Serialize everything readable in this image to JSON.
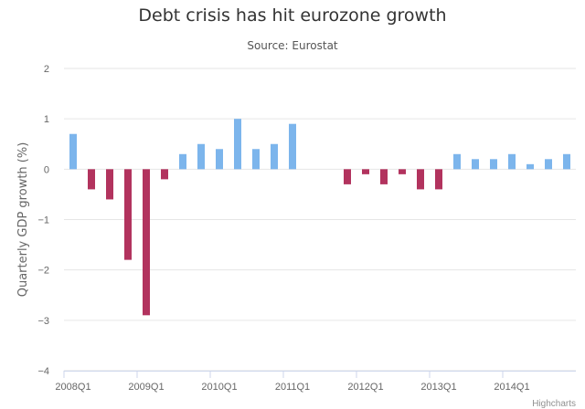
{
  "chart_data": {
    "type": "bar",
    "title": "Debt crisis has hit eurozone growth",
    "subtitle": "Source: Eurostat",
    "xlabel": "",
    "ylabel": "Quarterly GDP growth (%)",
    "ylim": [
      -4,
      2
    ],
    "yticks": [
      2,
      1,
      0,
      -1,
      -2,
      -3,
      -4
    ],
    "ytick_labels": [
      "2",
      "1",
      "0",
      "−1",
      "−2",
      "−3",
      "−4"
    ],
    "grid": true,
    "legend": "none",
    "colors": {
      "positive": "#7cb5ec",
      "negative": "#b2335e",
      "grid": "#e6e6e6",
      "axis": "#ccd6eb"
    },
    "categories": [
      "2008Q1",
      "2008Q2",
      "2008Q3",
      "2008Q4",
      "2009Q1",
      "2009Q2",
      "2009Q3",
      "2009Q4",
      "2010Q1",
      "2010Q2",
      "2010Q3",
      "2010Q4",
      "2011Q1",
      "2011Q2",
      "2011Q3",
      "2011Q4",
      "2012Q1",
      "2012Q2",
      "2012Q3",
      "2012Q4",
      "2013Q1",
      "2013Q2",
      "2013Q3",
      "2013Q4",
      "2014Q1",
      "2014Q2",
      "2014Q3",
      "2014Q4"
    ],
    "values": [
      0.7,
      -0.4,
      -0.6,
      -1.8,
      -2.9,
      -0.2,
      0.3,
      0.5,
      0.4,
      1.0,
      0.4,
      0.5,
      0.9,
      0.0,
      0.0,
      -0.3,
      -0.1,
      -0.3,
      -0.1,
      -0.4,
      -0.4,
      0.3,
      0.2,
      0.2,
      0.3,
      0.1,
      0.2,
      0.3
    ],
    "xtick_labels": [
      {
        "index": 0,
        "label": "2008Q1"
      },
      {
        "index": 4,
        "label": "2009Q1"
      },
      {
        "index": 8,
        "label": "2010Q1"
      },
      {
        "index": 12,
        "label": "2011Q1"
      },
      {
        "index": 16,
        "label": "2012Q1"
      },
      {
        "index": 20,
        "label": "2013Q1"
      },
      {
        "index": 24,
        "label": "2014Q1"
      }
    ]
  },
  "credits": "Highcharts"
}
